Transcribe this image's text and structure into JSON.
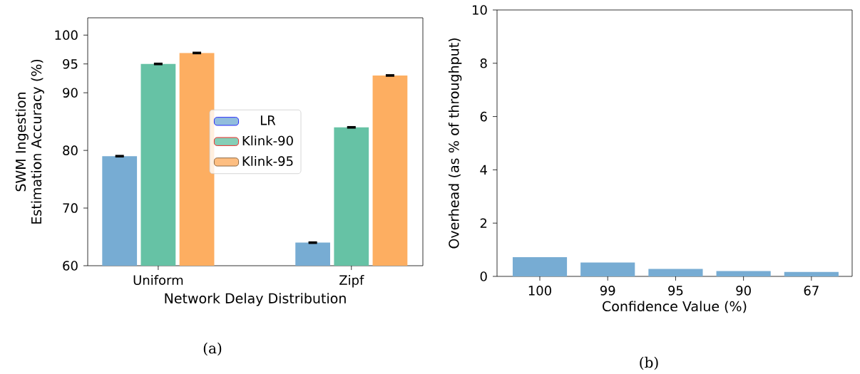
{
  "chart_data": [
    {
      "type": "bar",
      "xlabel": "Network Delay Distribution",
      "ylabel": "SWM Ingestion Estimation Accuracy (%)",
      "categories": [
        "Uniform",
        "Zipf"
      ],
      "series": [
        {
          "name": "LR",
          "color": "#77acd3",
          "values": [
            79,
            64
          ],
          "errors": [
            0.1,
            0.1
          ]
        },
        {
          "name": "Klink-90",
          "color": "#66c2a5",
          "values": [
            95,
            84
          ],
          "errors": [
            0.1,
            0.1
          ]
        },
        {
          "name": "Klink-95",
          "color": "#fdae61",
          "values": [
            96.9,
            93
          ],
          "errors": [
            0.1,
            0.1
          ]
        }
      ],
      "ylim": [
        60,
        103
      ],
      "yticks": [
        60,
        70,
        80,
        90,
        95,
        100
      ],
      "legend": "center",
      "annotations": [
        "(a)"
      ]
    },
    {
      "type": "bar",
      "xlabel": "Confidence Value (%)",
      "ylabel": "Overhead (as % of throughput)",
      "categories": [
        "100",
        "99",
        "95",
        "90",
        "67"
      ],
      "values": [
        0.72,
        0.52,
        0.28,
        0.2,
        0.17
      ],
      "color": "#77acd3",
      "ylim": [
        0,
        10
      ],
      "yticks": [
        0,
        2,
        4,
        6,
        8,
        10
      ],
      "annotations": [
        "(b)"
      ]
    }
  ]
}
